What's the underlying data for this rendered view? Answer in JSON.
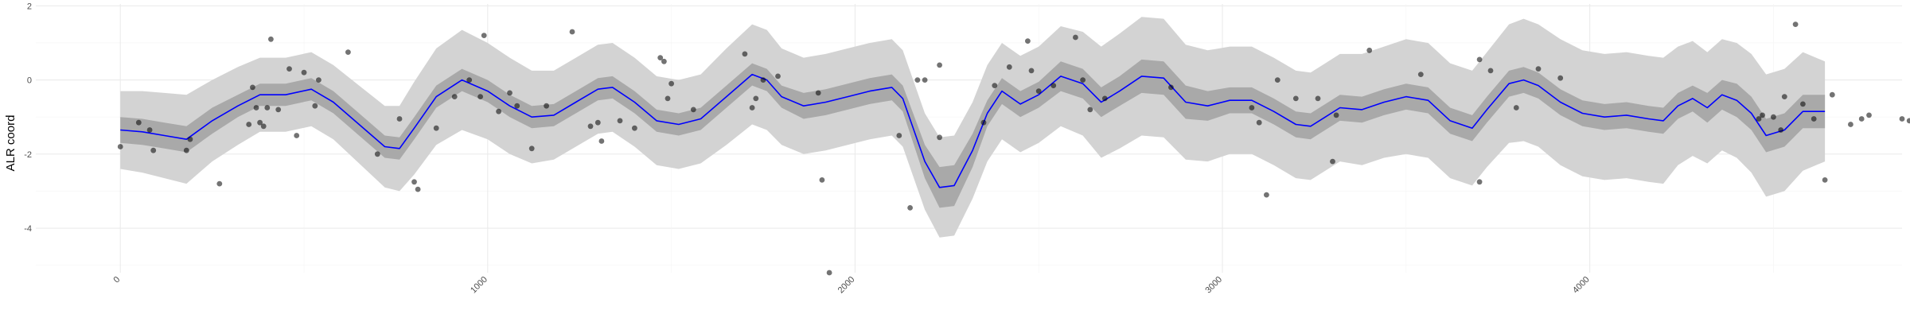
{
  "chart_data": {
    "type": "line",
    "xlabel": "",
    "ylabel": "ALR coord",
    "xlim": [
      -230,
      4850
    ],
    "ylim": [
      -5.2,
      2.05
    ],
    "x_ticks": [
      0,
      1000,
      2000,
      3000,
      4000
    ],
    "x_tick_labels": [
      "0",
      "1000",
      "2000",
      "3000",
      "4000"
    ],
    "y_ticks": [
      -4,
      -2,
      0,
      2
    ],
    "y_tick_labels": [
      "-4",
      "-2",
      "0",
      "2"
    ],
    "grid": true,
    "colors": {
      "line": "#0000ff",
      "inner_band": "#a9a9a9",
      "outer_band": "#d3d3d3",
      "points": "#000000",
      "grid_major": "#ebebeb",
      "grid_minor": "#f5f5f5"
    },
    "series": [
      {
        "kind": "smooth_fit_with_bands",
        "x": [
          0,
          60,
          120,
          180,
          250,
          320,
          380,
          450,
          520,
          580,
          650,
          720,
          760,
          800,
          860,
          930,
          1000,
          1060,
          1120,
          1180,
          1240,
          1300,
          1340,
          1400,
          1460,
          1520,
          1580,
          1650,
          1720,
          1760,
          1800,
          1860,
          1920,
          1980,
          2040,
          2100,
          2130,
          2190,
          2230,
          2270,
          2320,
          2360,
          2400,
          2450,
          2500,
          2560,
          2620,
          2670,
          2720,
          2780,
          2840,
          2900,
          2960,
          3020,
          3080,
          3140,
          3200,
          3240,
          3280,
          3320,
          3380,
          3440,
          3500,
          3560,
          3620,
          3680,
          3720,
          3780,
          3820,
          3860,
          3920,
          3980,
          4040,
          4100,
          4160,
          4200,
          4240,
          4280,
          4320,
          4360,
          4400,
          4440,
          4480,
          4530,
          4580,
          4640
        ],
        "fit": [
          -1.35,
          -1.4,
          -1.5,
          -1.6,
          -1.1,
          -0.7,
          -0.4,
          -0.4,
          -0.25,
          -0.6,
          -1.2,
          -1.8,
          -1.85,
          -1.3,
          -0.45,
          0.0,
          -0.3,
          -0.7,
          -1.0,
          -0.95,
          -0.6,
          -0.25,
          -0.2,
          -0.6,
          -1.1,
          -1.2,
          -1.05,
          -0.45,
          0.15,
          0.0,
          -0.45,
          -0.7,
          -0.6,
          -0.45,
          -0.3,
          -0.2,
          -0.5,
          -2.2,
          -2.9,
          -2.85,
          -1.9,
          -0.9,
          -0.3,
          -0.65,
          -0.4,
          0.1,
          -0.1,
          -0.6,
          -0.3,
          0.1,
          0.05,
          -0.6,
          -0.7,
          -0.55,
          -0.55,
          -0.85,
          -1.2,
          -1.25,
          -1.0,
          -0.75,
          -0.8,
          -0.6,
          -0.45,
          -0.55,
          -1.1,
          -1.3,
          -0.8,
          -0.1,
          0.0,
          -0.15,
          -0.6,
          -0.9,
          -1.0,
          -0.95,
          -1.05,
          -1.1,
          -0.7,
          -0.5,
          -0.75,
          -0.4,
          -0.55,
          -0.9,
          -1.5,
          -1.35,
          -0.85,
          -0.85
        ],
        "inner_halfwidth": [
          0.35,
          0.35,
          0.35,
          0.35,
          0.35,
          0.3,
          0.3,
          0.3,
          0.3,
          0.3,
          0.3,
          0.3,
          0.3,
          0.3,
          0.3,
          0.3,
          0.3,
          0.3,
          0.3,
          0.3,
          0.3,
          0.3,
          0.3,
          0.3,
          0.3,
          0.3,
          0.3,
          0.3,
          0.3,
          0.3,
          0.3,
          0.35,
          0.35,
          0.35,
          0.35,
          0.35,
          0.35,
          0.45,
          0.55,
          0.55,
          0.45,
          0.35,
          0.35,
          0.35,
          0.35,
          0.4,
          0.4,
          0.4,
          0.4,
          0.45,
          0.45,
          0.45,
          0.4,
          0.35,
          0.35,
          0.35,
          0.35,
          0.35,
          0.35,
          0.35,
          0.35,
          0.35,
          0.35,
          0.35,
          0.35,
          0.35,
          0.35,
          0.35,
          0.35,
          0.35,
          0.35,
          0.35,
          0.35,
          0.35,
          0.35,
          0.35,
          0.35,
          0.35,
          0.4,
          0.4,
          0.45,
          0.45,
          0.45,
          0.45,
          0.45,
          0.45
        ],
        "outer_halfwidth": [
          1.05,
          1.1,
          1.15,
          1.2,
          1.1,
          1.05,
          1.0,
          1.0,
          1.0,
          1.0,
          1.05,
          1.1,
          1.15,
          1.25,
          1.3,
          1.35,
          1.3,
          1.3,
          1.25,
          1.2,
          1.2,
          1.2,
          1.2,
          1.2,
          1.2,
          1.2,
          1.2,
          1.3,
          1.35,
          1.35,
          1.3,
          1.3,
          1.3,
          1.3,
          1.3,
          1.3,
          1.3,
          1.3,
          1.35,
          1.35,
          1.3,
          1.3,
          1.3,
          1.3,
          1.3,
          1.35,
          1.4,
          1.5,
          1.55,
          1.6,
          1.6,
          1.55,
          1.5,
          1.45,
          1.45,
          1.45,
          1.45,
          1.45,
          1.45,
          1.45,
          1.5,
          1.5,
          1.55,
          1.55,
          1.55,
          1.55,
          1.55,
          1.6,
          1.65,
          1.65,
          1.7,
          1.7,
          1.7,
          1.7,
          1.7,
          1.7,
          1.6,
          1.55,
          1.5,
          1.5,
          1.55,
          1.6,
          1.65,
          1.65,
          1.6,
          1.35
        ]
      },
      {
        "kind": "points",
        "x": [
          0,
          50,
          80,
          90,
          180,
          190,
          270,
          350,
          360,
          370,
          380,
          390,
          400,
          410,
          430,
          460,
          480,
          500,
          530,
          540,
          620,
          700,
          760,
          800,
          810,
          860,
          910,
          950,
          980,
          990,
          1030,
          1060,
          1080,
          1120,
          1160,
          1230,
          1280,
          1300,
          1310,
          1360,
          1400,
          1470,
          1480,
          1490,
          1500,
          1560,
          1700,
          1720,
          1730,
          1750,
          1790,
          1900,
          1910,
          1930,
          2120,
          2150,
          2170,
          2190,
          2230,
          2230,
          2350,
          2380,
          2420,
          2470,
          2480,
          2500,
          2540,
          2600,
          2620,
          2640,
          2680,
          2860,
          3080,
          3100,
          3120,
          3150,
          3200,
          3260,
          3300,
          3310,
          3400,
          3540,
          3700,
          3700,
          3730,
          3800,
          3860,
          3920,
          4460,
          4470,
          4500,
          4520,
          4530,
          4560,
          4580,
          4610,
          4640,
          4660,
          4710,
          4740,
          4760,
          4850,
          4870
        ],
        "y": [
          -1.8,
          -1.15,
          -1.35,
          -1.9,
          -1.9,
          -1.6,
          -2.8,
          -1.2,
          -0.2,
          -0.75,
          -1.15,
          -1.25,
          -0.75,
          1.1,
          -0.8,
          0.3,
          -1.5,
          0.2,
          -0.7,
          0.0,
          0.75,
          -2.0,
          -1.05,
          -2.75,
          -2.95,
          -1.3,
          -0.45,
          0.0,
          -0.45,
          1.2,
          -0.85,
          -0.35,
          -0.7,
          -1.85,
          -0.7,
          1.3,
          -1.25,
          -1.15,
          -1.65,
          -1.1,
          -1.3,
          0.6,
          0.5,
          -0.5,
          -0.1,
          -0.8,
          0.7,
          -0.75,
          -0.5,
          0.0,
          0.1,
          -0.35,
          -2.7,
          -5.2,
          -1.5,
          -3.45,
          0.0,
          0.0,
          0.4,
          -1.55,
          -1.15,
          -0.15,
          0.35,
          1.05,
          0.25,
          -0.3,
          -0.15,
          1.15,
          0.0,
          -0.8,
          -0.5,
          -0.2,
          -0.75,
          -1.15,
          -3.1,
          0.0,
          -0.5,
          -0.5,
          -2.2,
          -0.95,
          0.8,
          0.15,
          -2.75,
          0.55,
          0.25,
          -0.75,
          0.3,
          0.05,
          -1.05,
          -0.95,
          -1.0,
          -1.35,
          -0.45,
          1.5,
          -0.65,
          -1.05,
          -2.7,
          -0.4,
          -1.2,
          -1.05,
          -0.95,
          -1.05,
          -1.1
        ]
      }
    ]
  }
}
